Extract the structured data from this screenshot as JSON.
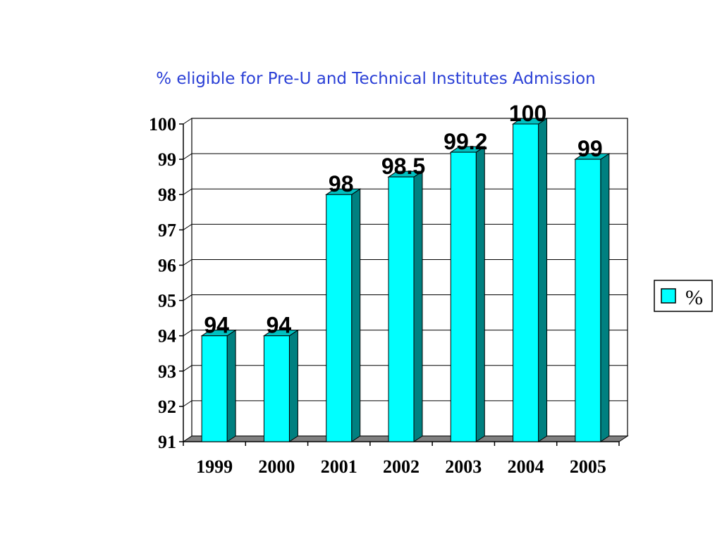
{
  "chart_data": {
    "type": "bar",
    "title": "% eligible for Pre-U and Technical Institutes Admission",
    "categories": [
      "1999",
      "2000",
      "2001",
      "2002",
      "2003",
      "2004",
      "2005"
    ],
    "series": [
      {
        "name": "%",
        "values": [
          94,
          94,
          98,
          98.5,
          99.2,
          100,
          99
        ]
      }
    ],
    "data_labels": [
      "94",
      "94",
      "98",
      "98.5",
      "99.2",
      "100",
      "99"
    ],
    "y_ticks": [
      "91",
      "92",
      "93",
      "94",
      "95",
      "96",
      "97",
      "98",
      "99",
      "100"
    ],
    "ylim": [
      91,
      100
    ],
    "grid": true,
    "legend_position": "right",
    "style": "3d",
    "colors": {
      "bar_front": "#00ffff",
      "bar_side": "#008080",
      "bar_top": "#00c0c0",
      "floor": "#808080",
      "title": "#2a3fd6"
    }
  }
}
